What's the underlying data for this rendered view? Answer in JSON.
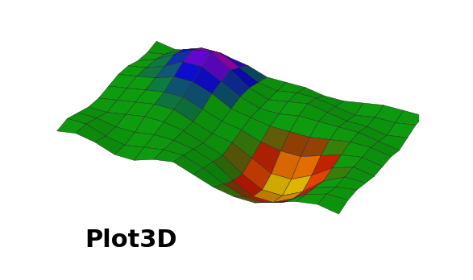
{
  "chart_data": {
    "type": "surface",
    "title": "Plot3D",
    "tick_labels": false,
    "x": [
      0,
      1,
      2,
      3,
      4,
      5,
      6,
      7,
      8,
      9,
      10,
      11,
      12,
      13,
      14
    ],
    "y": [
      0,
      1,
      2,
      3,
      4,
      5,
      6,
      7,
      8,
      9,
      10
    ],
    "xlim": [
      0,
      14
    ],
    "ylim": [
      0,
      10
    ],
    "zlim": [
      -1,
      1
    ],
    "z": [
      [
        0.1,
        0.2,
        0.1,
        -0.1,
        -0.1,
        0.1,
        0.2,
        0.0,
        -0.2,
        -0.3,
        -0.3,
        -0.1,
        0.1,
        0.2,
        0.1
      ],
      [
        0.2,
        0.2,
        0.0,
        -0.1,
        0.0,
        0.1,
        0.1,
        -0.1,
        -0.4,
        -0.6,
        -0.6,
        -0.4,
        0.0,
        0.2,
        0.2
      ],
      [
        0.1,
        0.1,
        0.0,
        0.0,
        0.1,
        0.1,
        0.0,
        -0.2,
        -0.6,
        -0.9,
        -0.9,
        -0.6,
        -0.1,
        0.1,
        0.2
      ],
      [
        0.0,
        0.0,
        0.1,
        0.2,
        0.2,
        0.1,
        -0.1,
        -0.3,
        -0.7,
        -1.0,
        -1.0,
        -0.7,
        -0.2,
        0.1,
        0.1
      ],
      [
        0.0,
        0.1,
        0.2,
        0.3,
        0.3,
        0.1,
        -0.1,
        -0.2,
        -0.5,
        -0.8,
        -0.8,
        -0.5,
        -0.1,
        0.1,
        0.0
      ],
      [
        0.1,
        0.2,
        0.3,
        0.4,
        0.4,
        0.2,
        0.0,
        -0.1,
        -0.3,
        -0.4,
        -0.4,
        -0.2,
        0.0,
        0.1,
        0.0
      ],
      [
        0.2,
        0.3,
        0.4,
        0.6,
        0.6,
        0.4,
        0.1,
        0.0,
        -0.1,
        -0.1,
        -0.1,
        0.0,
        0.1,
        0.1,
        0.0
      ],
      [
        0.2,
        0.3,
        0.5,
        0.8,
        0.8,
        0.5,
        0.2,
        0.0,
        0.0,
        0.1,
        0.1,
        0.1,
        0.1,
        0.0,
        -0.1
      ],
      [
        0.1,
        0.3,
        0.6,
        0.9,
        1.0,
        0.6,
        0.2,
        0.0,
        0.1,
        0.2,
        0.1,
        0.0,
        0.0,
        -0.1,
        0.0
      ],
      [
        0.1,
        0.2,
        0.5,
        0.7,
        0.7,
        0.4,
        0.1,
        0.0,
        0.1,
        0.1,
        0.0,
        -0.1,
        0.0,
        0.0,
        0.1
      ],
      [
        0.2,
        0.1,
        0.2,
        0.3,
        0.3,
        0.2,
        0.0,
        0.0,
        0.0,
        -0.1,
        -0.1,
        0.0,
        0.1,
        0.1,
        0.1
      ]
    ]
  }
}
